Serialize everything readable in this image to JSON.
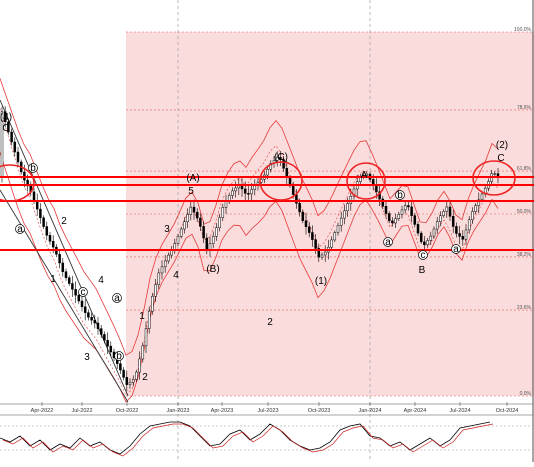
{
  "chart_data": {
    "type": "candlestick",
    "x_ticks": [
      "Apr-2022",
      "Jul-2022",
      "Oct-2022",
      "Jan-2023",
      "Apr-2023",
      "Jul-2023",
      "Oct-2023",
      "Jan-2024",
      "Apr-2024",
      "Jul-2024",
      "Oct-2024"
    ],
    "fib_levels": [
      {
        "label": "100.0%",
        "ratio": 1.0
      },
      {
        "label": "78.6%",
        "ratio": 0.786
      },
      {
        "label": "61.8%",
        "ratio": 0.618
      },
      {
        "label": "50.0%",
        "ratio": 0.5
      },
      {
        "label": "38.2%",
        "ratio": 0.382
      },
      {
        "label": "23.6%",
        "ratio": 0.236
      },
      {
        "label": "0.0%",
        "ratio": 0.0
      }
    ],
    "wave_labels": [
      "(4)",
      "C",
      "b",
      "a",
      "2",
      "1",
      "4",
      "c",
      "a",
      "3",
      "1",
      "2",
      "b",
      "(A)",
      "5",
      "3",
      "4",
      "(B)",
      "2",
      "(C)",
      "(1)",
      "A",
      "b",
      "a",
      "c",
      "B",
      "(2)",
      "C",
      "a"
    ],
    "colors": {
      "fib_zone": "#fbdcdc",
      "fib_line": "#e35b5b",
      "horizontal_line": "#ff0000",
      "channel": "#e43a3a",
      "candle_up": "#ffffff",
      "candle_down": "#000000",
      "highlight_circle": "#ee2222"
    },
    "price_series": [
      [
        0,
        0.79
      ],
      [
        8,
        0.72
      ],
      [
        15,
        0.66
      ],
      [
        22,
        0.6
      ],
      [
        30,
        0.56
      ],
      [
        38,
        0.5
      ],
      [
        46,
        0.44
      ],
      [
        54,
        0.4
      ],
      [
        62,
        0.34
      ],
      [
        70,
        0.3
      ],
      [
        78,
        0.26
      ],
      [
        86,
        0.22
      ],
      [
        94,
        0.2
      ],
      [
        102,
        0.16
      ],
      [
        110,
        0.12
      ],
      [
        118,
        0.08
      ],
      [
        126,
        0.03
      ],
      [
        134,
        0.05
      ],
      [
        142,
        0.14
      ],
      [
        150,
        0.26
      ],
      [
        158,
        0.34
      ],
      [
        166,
        0.38
      ],
      [
        174,
        0.42
      ],
      [
        182,
        0.47
      ],
      [
        190,
        0.52
      ],
      [
        198,
        0.48
      ],
      [
        206,
        0.4
      ],
      [
        214,
        0.45
      ],
      [
        222,
        0.52
      ],
      [
        230,
        0.56
      ],
      [
        238,
        0.58
      ],
      [
        246,
        0.55
      ],
      [
        254,
        0.58
      ],
      [
        262,
        0.6
      ],
      [
        270,
        0.64
      ],
      [
        278,
        0.66
      ],
      [
        286,
        0.6
      ],
      [
        294,
        0.54
      ],
      [
        302,
        0.48
      ],
      [
        310,
        0.44
      ],
      [
        318,
        0.38
      ],
      [
        326,
        0.4
      ],
      [
        334,
        0.45
      ],
      [
        342,
        0.5
      ],
      [
        350,
        0.55
      ],
      [
        358,
        0.6
      ],
      [
        366,
        0.61
      ],
      [
        374,
        0.57
      ],
      [
        382,
        0.52
      ],
      [
        390,
        0.47
      ],
      [
        398,
        0.5
      ],
      [
        406,
        0.53
      ],
      [
        414,
        0.47
      ],
      [
        422,
        0.41
      ],
      [
        430,
        0.44
      ],
      [
        438,
        0.49
      ],
      [
        446,
        0.52
      ],
      [
        454,
        0.45
      ],
      [
        462,
        0.43
      ],
      [
        470,
        0.5
      ],
      [
        478,
        0.54
      ],
      [
        486,
        0.58
      ],
      [
        492,
        0.62
      ],
      [
        496,
        0.6
      ]
    ],
    "oscillator": [
      [
        0,
        0.5
      ],
      [
        10,
        0.4
      ],
      [
        20,
        0.55
      ],
      [
        30,
        0.3
      ],
      [
        40,
        0.45
      ],
      [
        50,
        0.2
      ],
      [
        60,
        0.35
      ],
      [
        70,
        0.25
      ],
      [
        80,
        0.5
      ],
      [
        90,
        0.3
      ],
      [
        100,
        0.4
      ],
      [
        110,
        0.2
      ],
      [
        120,
        0.1
      ],
      [
        130,
        0.3
      ],
      [
        140,
        0.6
      ],
      [
        150,
        0.8
      ],
      [
        160,
        0.85
      ],
      [
        170,
        0.9
      ],
      [
        180,
        0.9
      ],
      [
        190,
        0.8
      ],
      [
        200,
        0.55
      ],
      [
        210,
        0.3
      ],
      [
        220,
        0.35
      ],
      [
        230,
        0.6
      ],
      [
        240,
        0.7
      ],
      [
        250,
        0.45
      ],
      [
        260,
        0.6
      ],
      [
        270,
        0.85
      ],
      [
        280,
        0.7
      ],
      [
        290,
        0.45
      ],
      [
        300,
        0.3
      ],
      [
        310,
        0.2
      ],
      [
        320,
        0.25
      ],
      [
        330,
        0.4
      ],
      [
        340,
        0.7
      ],
      [
        350,
        0.8
      ],
      [
        360,
        0.85
      ],
      [
        370,
        0.55
      ],
      [
        380,
        0.5
      ],
      [
        390,
        0.3
      ],
      [
        400,
        0.4
      ],
      [
        410,
        0.2
      ],
      [
        420,
        0.35
      ],
      [
        430,
        0.5
      ],
      [
        440,
        0.3
      ],
      [
        450,
        0.45
      ],
      [
        460,
        0.75
      ],
      [
        470,
        0.8
      ],
      [
        480,
        0.85
      ],
      [
        490,
        0.9
      ]
    ]
  }
}
